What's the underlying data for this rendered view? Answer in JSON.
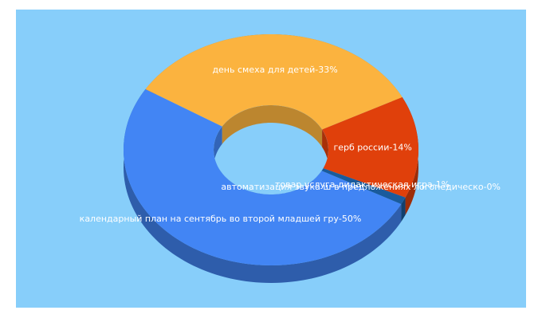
{
  "chart_data": {
    "type": "pie",
    "categories": [
      "календарный план на сентябрь во второй младшей гру",
      "день смеха для детей",
      "герб россии",
      "товар услуга дидактическая игра",
      "автоматизация звука ш в предложениях логопедическо"
    ],
    "values": [
      50,
      33,
      14,
      1,
      0
    ],
    "value_labels": [
      "-50%",
      "-33%",
      "-14%",
      "-1%",
      "-0%"
    ],
    "colors": [
      "#4285f4",
      "#fbb33f",
      "#e0400b",
      "#1a5b9c",
      "#9aa6b2"
    ]
  }
}
